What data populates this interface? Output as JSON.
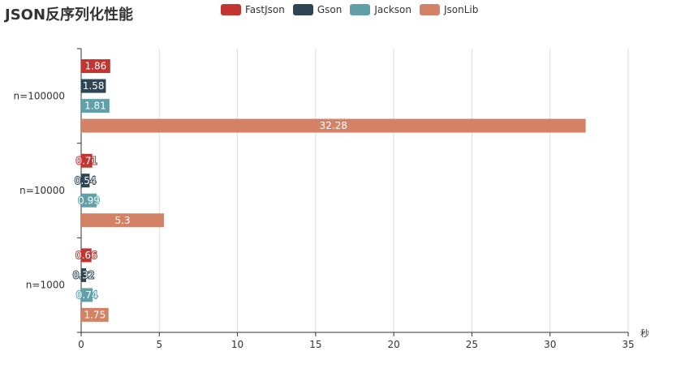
{
  "chart_data": {
    "type": "bar",
    "orientation": "horizontal",
    "title": "JSON反序列化性能",
    "xlabel": "秒",
    "ylabel": "",
    "categories": [
      "n=1000",
      "n=10000",
      "n=100000"
    ],
    "xlim": [
      0,
      35
    ],
    "xticks": [
      0,
      5,
      10,
      15,
      20,
      25,
      30,
      35
    ],
    "grid": "vertical",
    "legend_position": "top",
    "series": [
      {
        "name": "FastJson",
        "color": "#c23531",
        "values": [
          0.66,
          0.71,
          1.86
        ]
      },
      {
        "name": "Gson",
        "color": "#2f4554",
        "values": [
          0.32,
          0.54,
          1.58
        ]
      },
      {
        "name": "Jackson",
        "color": "#61a0a8",
        "values": [
          0.74,
          0.99,
          1.81
        ]
      },
      {
        "name": "JsonLib",
        "color": "#d48265",
        "values": [
          1.75,
          5.3,
          32.28
        ]
      }
    ]
  }
}
